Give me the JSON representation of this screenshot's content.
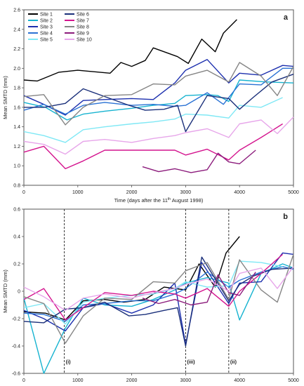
{
  "chart_data": [
    {
      "type": "line",
      "panel_label": "a",
      "xlabel_main": "Time (days after the 11",
      "xlabel_sup": "th",
      "xlabel_tail": " August 1998)",
      "ylabel": "Mean SMTD (mm)",
      "xlim": [
        0,
        5000
      ],
      "ylim": [
        0.8,
        2.6
      ],
      "xticks": [
        0,
        1000,
        2000,
        3000,
        4000,
        5000
      ],
      "yticks": [
        0.8,
        1.0,
        1.2,
        1.4,
        1.6,
        1.8,
        2.0,
        2.2,
        2.4,
        2.6
      ],
      "ytick_labels": [
        "0.8",
        "1.0",
        "1.2",
        "1.4",
        "1.6",
        "1.8",
        "2.0",
        "2.2",
        "2.4",
        "2.6"
      ],
      "legend_position": "top-left",
      "series": [
        {
          "name": "Site 1",
          "color": "#000000",
          "x": [
            0,
            250,
            650,
            1000,
            1600,
            1800,
            2000,
            2250,
            2400,
            2850,
            3050,
            3300,
            3550,
            3700,
            3950
          ],
          "y": [
            1.88,
            1.87,
            1.96,
            1.98,
            1.95,
            2.06,
            2.02,
            2.08,
            2.21,
            2.12,
            2.05,
            2.3,
            2.17,
            2.36,
            2.5
          ]
        },
        {
          "name": "Site 2",
          "color": "#16b3d0",
          "x": [
            0,
            400,
            800,
            1100,
            1500,
            2000,
            2400,
            2800,
            3000,
            3400,
            3600,
            3800,
            4000,
            4500,
            5000
          ],
          "y": [
            1.65,
            1.6,
            1.47,
            1.53,
            1.56,
            1.59,
            1.62,
            1.64,
            1.72,
            1.73,
            1.72,
            1.66,
            1.88,
            1.86,
            1.85
          ]
        },
        {
          "name": "Site 3",
          "color": "#1c2fae",
          "x": [
            0,
            370,
            770,
            1100,
            1500,
            2000,
            2400,
            2800,
            3000,
            3400,
            3800,
            4000,
            4400,
            4800,
            5000
          ],
          "y": [
            1.72,
            1.63,
            1.52,
            1.67,
            1.68,
            1.69,
            1.68,
            1.85,
            1.98,
            2.09,
            1.85,
            1.95,
            1.93,
            2.03,
            2.02
          ]
        },
        {
          "name": "Site 4",
          "color": "#2a72d4",
          "x": [
            0,
            370,
            770,
            1100,
            1500,
            2000,
            2400,
            2800,
            3000,
            3400,
            3700,
            4000,
            4400,
            4800,
            5000
          ],
          "y": [
            1.57,
            1.63,
            1.53,
            1.62,
            1.65,
            1.62,
            1.63,
            1.61,
            1.62,
            1.75,
            1.63,
            1.84,
            1.83,
            2.0,
            2.0
          ]
        },
        {
          "name": "Site 5",
          "color": "#7fe8f5",
          "x": [
            0,
            370,
            770,
            1100,
            1500,
            2000,
            2400,
            2800,
            3000,
            3400,
            3800,
            4000,
            4400,
            4800
          ],
          "y": [
            1.35,
            1.31,
            1.24,
            1.37,
            1.4,
            1.43,
            1.45,
            1.48,
            1.53,
            1.52,
            1.49,
            1.62,
            1.6,
            1.7
          ]
        },
        {
          "name": "Site 6",
          "color": "#1a2f7a",
          "x": [
            0,
            370,
            770,
            1100,
            1500,
            1950,
            2250,
            2600,
            2850,
            3000,
            3400,
            3800,
            4000,
            4250,
            4600,
            5000
          ],
          "y": [
            1.6,
            1.6,
            1.64,
            1.79,
            1.71,
            1.62,
            1.57,
            1.58,
            1.62,
            1.35,
            1.72,
            1.69,
            1.58,
            1.7,
            1.86,
            1.94
          ]
        },
        {
          "name": "Site 7",
          "color": "#d4148e",
          "x": [
            0,
            370,
            770,
            1100,
            1500,
            2000,
            2400,
            2800,
            3000,
            3400,
            3800,
            4000,
            4400,
            4800
          ],
          "y": [
            1.14,
            1.2,
            0.97,
            1.05,
            1.16,
            1.16,
            1.16,
            1.16,
            1.11,
            1.17,
            1.06,
            1.16,
            1.29,
            1.43
          ]
        },
        {
          "name": "Site 8",
          "color": "#858585",
          "x": [
            0,
            370,
            770,
            1100,
            1500,
            2000,
            2400,
            2800,
            3000,
            3400,
            3800,
            4000,
            4400,
            4700,
            5000
          ],
          "y": [
            1.71,
            1.73,
            1.42,
            1.6,
            1.72,
            1.73,
            1.84,
            1.83,
            1.92,
            1.98,
            1.86,
            2.06,
            1.92,
            1.72,
            2.02
          ]
        },
        {
          "name": "Site 9",
          "color": "#8c1c7c",
          "x": [
            2200,
            2500,
            2800,
            3100,
            3400,
            3600,
            3800,
            4000,
            4300
          ],
          "y": [
            0.99,
            0.94,
            0.97,
            0.93,
            0.96,
            1.13,
            1.04,
            1.02,
            1.16
          ]
        },
        {
          "name": "Site 10",
          "color": "#e7a6ea",
          "x": [
            0,
            370,
            770,
            1100,
            1500,
            2000,
            2400,
            2800,
            3000,
            3400,
            3800,
            4000,
            4400,
            4700,
            5000
          ],
          "y": [
            1.25,
            1.22,
            1.12,
            1.25,
            1.27,
            1.24,
            1.28,
            1.31,
            1.34,
            1.38,
            1.29,
            1.43,
            1.47,
            1.33,
            1.5
          ]
        }
      ]
    },
    {
      "type": "line",
      "panel_label": "b",
      "ylabel": "Mean SMTD (mm)",
      "xlim": [
        0,
        5000
      ],
      "ylim": [
        -0.6,
        0.6
      ],
      "xticks": [
        0,
        1000,
        2000,
        3000,
        4000,
        5000
      ],
      "yticks": [
        -0.6,
        -0.4,
        -0.2,
        0.0,
        0.2,
        0.4,
        0.6
      ],
      "ytick_labels": [
        "-0.6",
        "-0.4",
        "-0.2",
        "0",
        "0.2",
        "0.4",
        "0.6"
      ],
      "vlines": [
        {
          "x": 750,
          "label": "(i)"
        },
        {
          "x": 3000,
          "label": "(iii)"
        },
        {
          "x": 3800,
          "label": "(ii)"
        }
      ],
      "series": [
        {
          "color": "#000000",
          "x": [
            0,
            400,
            770,
            1100,
            1500,
            1850,
            2250,
            2600,
            3000,
            3250,
            3550,
            3750,
            4000
          ],
          "y": [
            -0.15,
            -0.16,
            -0.21,
            -0.07,
            -0.06,
            -0.08,
            -0.06,
            0.03,
            0.01,
            0.2,
            0.03,
            0.28,
            0.4
          ]
        },
        {
          "color": "#16b3d0",
          "x": [
            0,
            370,
            770,
            1100,
            1500,
            2000,
            2400,
            2800,
            3000,
            3400,
            3800,
            4000,
            4400,
            4800,
            5000
          ],
          "y": [
            -0.05,
            -0.6,
            -0.27,
            -0.05,
            -0.1,
            -0.11,
            -0.06,
            0.01,
            0.06,
            0.1,
            0.06,
            -0.21,
            0.13,
            0.2,
            0.17
          ]
        },
        {
          "color": "#1c2fae",
          "x": [
            0,
            370,
            770,
            1100,
            1500,
            2000,
            2400,
            2800,
            3000,
            3300,
            3800,
            4000,
            4400,
            4800,
            5000
          ],
          "y": [
            -0.14,
            -0.2,
            -0.29,
            -0.12,
            -0.09,
            -0.16,
            -0.1,
            0.06,
            -0.39,
            0.21,
            -0.09,
            0.06,
            0.07,
            0.28,
            0.27
          ]
        },
        {
          "color": "#2a72d4",
          "x": [
            0,
            370,
            770,
            1100,
            1500,
            2000,
            2400,
            2800,
            3000,
            3400,
            3800,
            4000,
            4400,
            4800,
            5000
          ],
          "y": [
            -0.16,
            -0.17,
            -0.22,
            -0.1,
            -0.09,
            -0.07,
            -0.07,
            -0.02,
            0.02,
            0.14,
            0.03,
            0.08,
            0.14,
            0.18,
            0.16
          ]
        },
        {
          "color": "#7fe8f5",
          "x": [
            0,
            370,
            770,
            1100,
            1500,
            2000,
            2400,
            2800,
            3000,
            3400,
            3800,
            4000,
            4400,
            4800
          ],
          "y": [
            -0.12,
            -0.09,
            -0.24,
            -0.08,
            -0.05,
            -0.03,
            -0.02,
            0.02,
            0.07,
            0.03,
            0.04,
            0.22,
            0.21,
            0.18
          ]
        },
        {
          "color": "#1a2f7a",
          "x": [
            0,
            370,
            770,
            1100,
            1500,
            1950,
            2250,
            2600,
            2850,
            3000,
            3300,
            3800,
            4000,
            4250,
            4600,
            5000
          ],
          "y": [
            -0.22,
            -0.23,
            -0.13,
            -0.12,
            -0.08,
            -0.18,
            -0.17,
            -0.14,
            -0.12,
            -0.4,
            0.25,
            -0.07,
            0.05,
            0.11,
            0.16,
            0.17
          ]
        },
        {
          "color": "#d4148e",
          "x": [
            0,
            370,
            770,
            1100,
            1500,
            2000,
            2400,
            2800,
            3000,
            3400,
            3800,
            4000,
            4400,
            4800
          ],
          "y": [
            -0.06,
            0.02,
            -0.21,
            -0.12,
            -0.01,
            -0.03,
            0.0,
            -0.02,
            -0.05,
            0.02,
            -0.11,
            0.0,
            0.13,
            0.27
          ]
        },
        {
          "color": "#858585",
          "x": [
            0,
            370,
            770,
            1100,
            1500,
            2000,
            2400,
            2800,
            3000,
            3400,
            3800,
            4000,
            4400,
            4700,
            5000
          ],
          "y": [
            -0.04,
            -0.09,
            -0.38,
            -0.18,
            -0.05,
            -0.06,
            0.07,
            0.06,
            0.15,
            0.21,
            -0.06,
            0.23,
            0.01,
            -0.08,
            0.27
          ]
        },
        {
          "color": "#8c1c7c",
          "x": [
            2200,
            2500,
            2800,
            3100,
            3400,
            3600,
            3800,
            4000,
            4300
          ],
          "y": [
            -0.05,
            -0.09,
            -0.06,
            -0.1,
            -0.08,
            0.12,
            -0.01,
            -0.03,
            0.14
          ]
        },
        {
          "color": "#e7a6ea",
          "x": [
            0,
            370,
            770,
            1100,
            1500,
            2000,
            2400,
            2800,
            3000,
            3400,
            3800,
            4000,
            4400,
            4700,
            5000
          ],
          "y": [
            0.03,
            -0.04,
            -0.14,
            -0.05,
            -0.02,
            -0.05,
            -0.01,
            0.02,
            0.05,
            0.09,
            0.0,
            0.13,
            0.17,
            0.02,
            0.18
          ]
        }
      ]
    }
  ]
}
